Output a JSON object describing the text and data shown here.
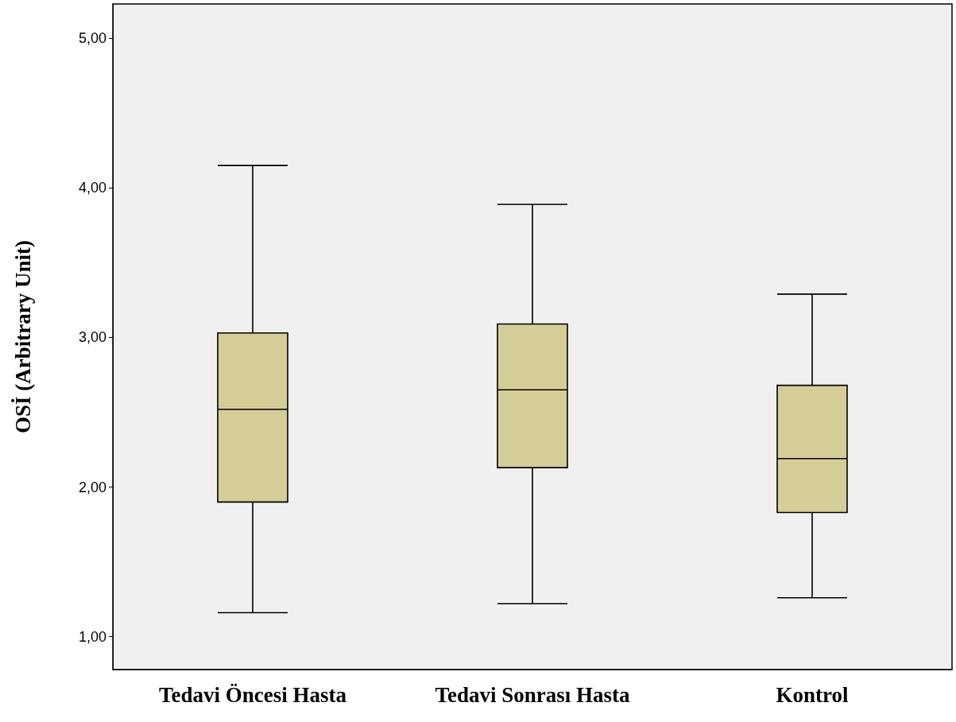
{
  "chart_data": {
    "type": "box",
    "ylabel": "OSİ (Arbitrary Unit)",
    "categories": [
      "Tedavi Öncesi Hasta",
      "Tedavi Sonrası Hasta",
      "Kontrol"
    ],
    "boxes": [
      {
        "low": 1.16,
        "q1": 1.9,
        "median": 2.52,
        "q3": 3.03,
        "high": 4.15
      },
      {
        "low": 1.22,
        "q1": 2.13,
        "median": 2.65,
        "q3": 3.09,
        "high": 3.89
      },
      {
        "low": 1.26,
        "q1": 1.83,
        "median": 2.19,
        "q3": 2.68,
        "high": 3.29
      }
    ],
    "color": "#d4cd98",
    "ylim": [
      0.78,
      5.23
    ],
    "yticks": [
      {
        "value": 1,
        "label": "1,00"
      },
      {
        "value": 2,
        "label": "2,00"
      },
      {
        "value": 3,
        "label": "3,00"
      },
      {
        "value": 4,
        "label": "4,00"
      },
      {
        "value": 5,
        "label": "5,00"
      }
    ],
    "grid": false
  }
}
